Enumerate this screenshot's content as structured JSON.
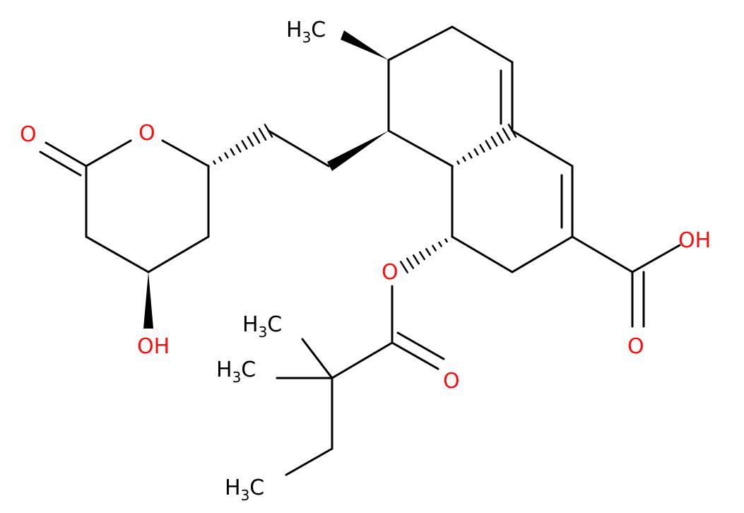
{
  "atoms": [
    {
      "label": "H",
      "sub": "3",
      "tail": "C"
    },
    {
      "label": "O"
    },
    {
      "label": "O"
    },
    {
      "label": "OH"
    },
    {
      "label": "O"
    },
    {
      "label": "OH"
    },
    {
      "label": "O"
    },
    {
      "label": "O"
    },
    {
      "label": "H",
      "sub": "3",
      "tail": "C"
    },
    {
      "label": "H",
      "sub": "3",
      "tail": "C"
    },
    {
      "label": "H",
      "sub": "3",
      "tail": "C"
    }
  ]
}
